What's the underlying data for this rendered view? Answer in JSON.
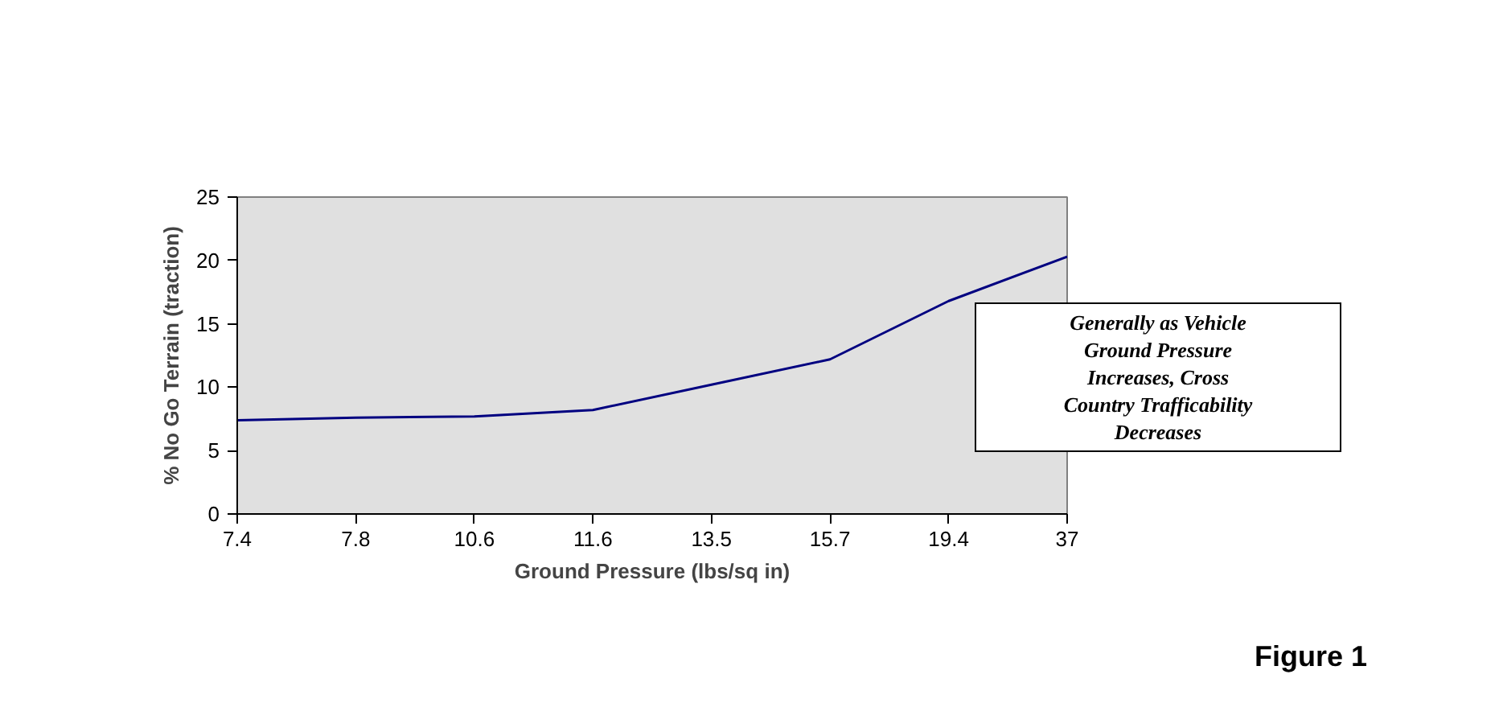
{
  "chart_data": {
    "type": "line",
    "xlabel": "Ground Pressure (lbs/sq in)",
    "ylabel": "% No Go Terrain (traction)",
    "categories": [
      "7.4",
      "7.8",
      "10.6",
      "11.6",
      "13.5",
      "15.7",
      "19.4",
      "37"
    ],
    "series": [
      {
        "color": "#000080",
        "values": [
          7.4,
          7.6,
          7.7,
          8.2,
          10.2,
          12.2,
          16.8,
          20.3
        ]
      }
    ],
    "ylim": [
      0,
      25
    ],
    "yticks": [
      0,
      5,
      10,
      15,
      20,
      25
    ],
    "grid": false,
    "marker": "none",
    "line_style": "solid",
    "annotations": [
      "Generally as Vehicle\nGround Pressure\nIncreases, Cross\nCountry Trafficability\nDecreases",
      "Figure 1"
    ]
  }
}
